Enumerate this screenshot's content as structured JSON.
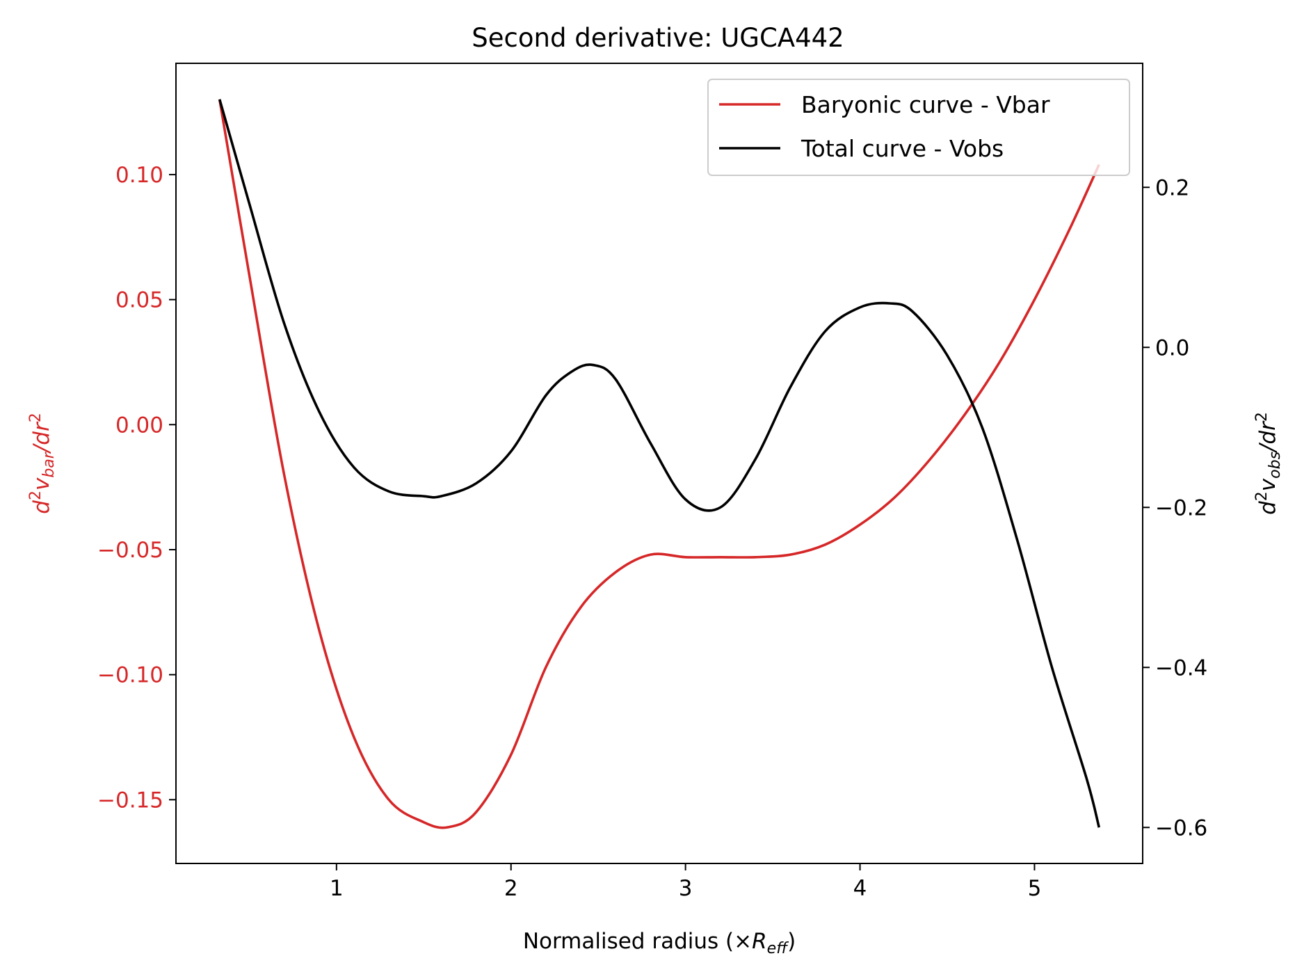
{
  "chart_data": {
    "type": "line",
    "title": "Second derivative: UGCA442",
    "xlabel": "Normalised radius (×R_eff)",
    "xlabel_parts": {
      "prefix": "Normalised radius (×",
      "var": "R",
      "sub": "eff",
      "suffix": ")"
    },
    "ylabel_left": "d²v_bar/dr²",
    "ylabel_left_parts": {
      "d": "d",
      "sup1": "2",
      "v": "v",
      "sub": "bar",
      "slash": "/dr",
      "sup2": "2"
    },
    "ylabel_right": "d²v_obs/dr²",
    "ylabel_right_parts": {
      "d": "d",
      "sup1": "2",
      "v": "v",
      "sub": "obs",
      "slash": "/dr",
      "sup2": "2"
    },
    "xlim": [
      0.08,
      5.62
    ],
    "ylim_left": [
      -0.1755,
      0.1445
    ],
    "ylim_right": [
      -0.645,
      0.355
    ],
    "x_ticks": [
      1,
      2,
      3,
      4,
      5
    ],
    "x_tick_labels": [
      "1",
      "2",
      "3",
      "4",
      "5"
    ],
    "y_ticks_left": [
      0.1,
      0.05,
      0.0,
      -0.05,
      -0.1,
      -0.15
    ],
    "y_tick_labels_left": [
      "0.10",
      "0.05",
      "0.00",
      "−0.05",
      "−0.10",
      "−0.15"
    ],
    "y_ticks_right": [
      0.2,
      0.0,
      -0.2,
      -0.4,
      -0.6
    ],
    "y_tick_labels_right": [
      "0.2",
      "0.0",
      "−0.2",
      "−0.4",
      "−0.6"
    ],
    "grid": false,
    "legend_placement": "top-right",
    "left_axis_color": "#d62728",
    "right_axis_color": "#000000",
    "series": [
      {
        "name": "Baryonic curve - Vbar",
        "axis": "left",
        "color": "#d62728",
        "x": [
          0.33,
          0.5,
          0.7,
          0.9,
          1.1,
          1.3,
          1.5,
          1.64,
          1.8,
          2.0,
          2.2,
          2.4,
          2.6,
          2.8,
          3.0,
          3.2,
          3.4,
          3.6,
          3.8,
          4.0,
          4.2,
          4.4,
          4.6,
          4.8,
          5.0,
          5.2,
          5.37
        ],
        "y": [
          0.13,
          0.06,
          -0.02,
          -0.082,
          -0.125,
          -0.15,
          -0.159,
          -0.161,
          -0.155,
          -0.132,
          -0.097,
          -0.073,
          -0.059,
          -0.052,
          -0.053,
          -0.053,
          -0.053,
          -0.052,
          -0.048,
          -0.04,
          -0.029,
          -0.014,
          0.004,
          0.025,
          0.05,
          0.078,
          0.104
        ]
      },
      {
        "name": "Total curve - Vobs",
        "axis": "right",
        "color": "#000000",
        "x": [
          0.33,
          0.5,
          0.7,
          0.9,
          1.1,
          1.3,
          1.5,
          1.6,
          1.8,
          2.0,
          2.2,
          2.35,
          2.47,
          2.6,
          2.8,
          3.0,
          3.2,
          3.4,
          3.6,
          3.8,
          4.0,
          4.17,
          4.3,
          4.5,
          4.7,
          4.9,
          5.1,
          5.3,
          5.37
        ],
        "y": [
          0.31,
          0.18,
          0.03,
          -0.08,
          -0.15,
          -0.18,
          -0.186,
          -0.186,
          -0.17,
          -0.13,
          -0.06,
          -0.03,
          -0.022,
          -0.04,
          -0.12,
          -0.19,
          -0.2,
          -0.14,
          -0.05,
          0.02,
          0.05,
          0.055,
          0.045,
          -0.01,
          -0.1,
          -0.24,
          -0.4,
          -0.54,
          -0.6
        ]
      }
    ]
  }
}
